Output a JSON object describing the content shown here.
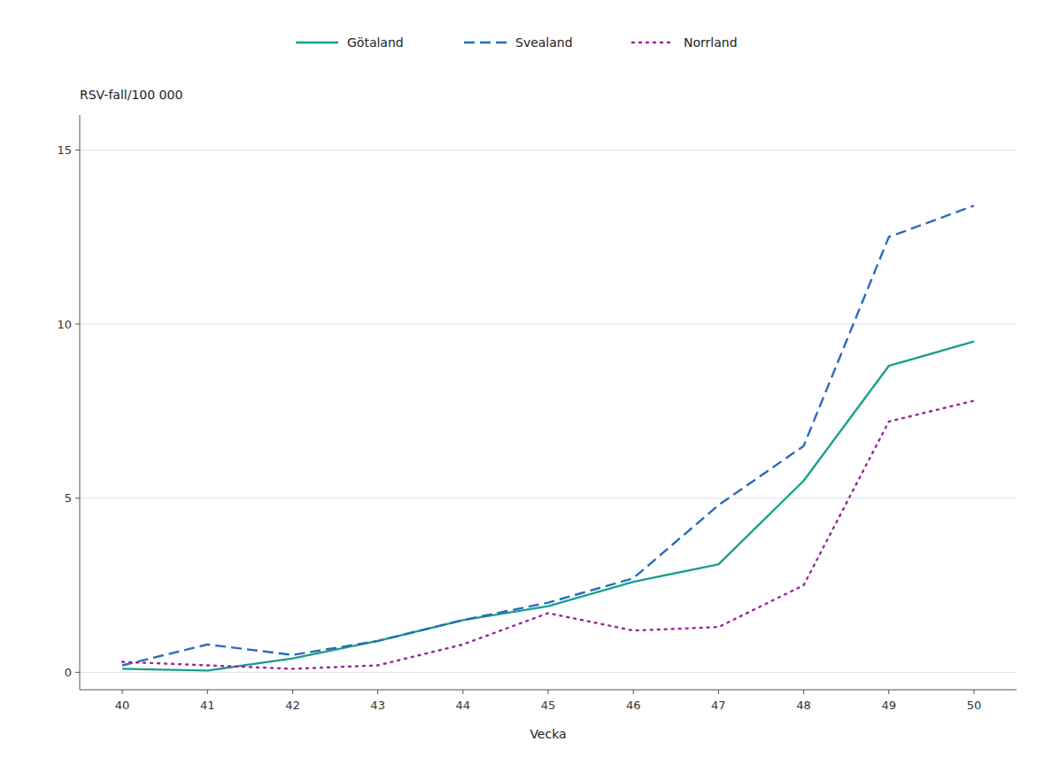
{
  "chart_data": {
    "type": "line",
    "x": [
      40,
      41,
      42,
      43,
      44,
      45,
      46,
      47,
      48,
      49,
      50
    ],
    "xlabel": "Vecka",
    "ylabel": "RSV-fall/100 000",
    "series": [
      {
        "name": "Götaland",
        "color": "#1A9E8F",
        "line_style": "solid",
        "values": [
          0.1,
          0.05,
          0.4,
          0.9,
          1.5,
          1.9,
          2.6,
          3.1,
          5.5,
          8.8,
          9.5
        ]
      },
      {
        "name": "Svealand",
        "color": "#2B6CB8",
        "line_style": "dashed",
        "values": [
          0.2,
          0.8,
          0.5,
          0.9,
          1.5,
          2.0,
          2.7,
          4.8,
          6.5,
          12.5,
          13.4
        ]
      },
      {
        "name": "Norrland",
        "color": "#9B2499",
        "line_style": "dotted",
        "values": [
          0.3,
          0.2,
          0.1,
          0.2,
          0.8,
          1.7,
          1.2,
          1.3,
          2.5,
          7.2,
          7.8
        ]
      }
    ],
    "xlim": [
      39.5,
      50.5
    ],
    "xticks": [
      40,
      41,
      42,
      43,
      44,
      45,
      46,
      47,
      48,
      49,
      50
    ],
    "ylim": [
      -0.5,
      16
    ],
    "yticks": [
      0,
      5,
      10,
      15
    ],
    "grid": true,
    "legend": "top"
  }
}
